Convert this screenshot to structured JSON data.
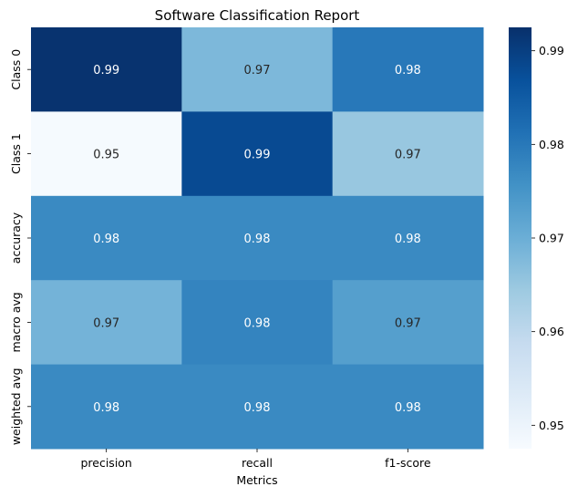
{
  "chart_data": {
    "type": "heatmap",
    "title": "Software Classification Report",
    "xlabel": "Metrics",
    "ylabel": "",
    "x_categories": [
      "precision",
      "recall",
      "f1-score"
    ],
    "y_categories": [
      "Class 0",
      "Class 1",
      "accuracy",
      "macro avg",
      "weighted avg"
    ],
    "values": [
      [
        0.992,
        0.968,
        0.98
      ],
      [
        0.948,
        0.988,
        0.965
      ],
      [
        0.977,
        0.977,
        0.977
      ],
      [
        0.969,
        0.978,
        0.973
      ],
      [
        0.977,
        0.977,
        0.977
      ]
    ],
    "annotations": [
      [
        "0.99",
        "0.97",
        "0.98"
      ],
      [
        "0.95",
        "0.99",
        "0.97"
      ],
      [
        "0.98",
        "0.98",
        "0.98"
      ],
      [
        "0.97",
        "0.98",
        "0.97"
      ],
      [
        "0.98",
        "0.98",
        "0.98"
      ]
    ],
    "colormap": "Blues",
    "colorbar": {
      "range": [
        0.9475,
        0.9925
      ],
      "ticks": [
        0.95,
        0.96,
        0.97,
        0.98,
        0.99
      ],
      "tick_labels": [
        "0.95",
        "0.96",
        "0.97",
        "0.98",
        "0.99"
      ]
    },
    "grid": false,
    "legend": "colorbar-right"
  }
}
